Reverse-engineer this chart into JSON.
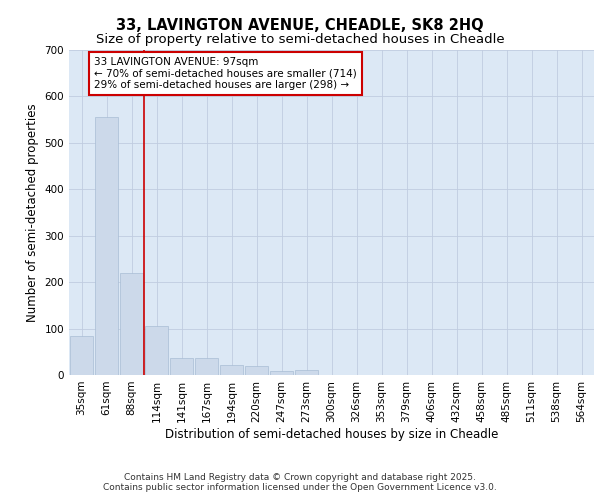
{
  "title_line1": "33, LAVINGTON AVENUE, CHEADLE, SK8 2HQ",
  "title_line2": "Size of property relative to semi-detached houses in Cheadle",
  "xlabel": "Distribution of semi-detached houses by size in Cheadle",
  "ylabel": "Number of semi-detached properties",
  "categories": [
    "35sqm",
    "61sqm",
    "88sqm",
    "114sqm",
    "141sqm",
    "167sqm",
    "194sqm",
    "220sqm",
    "247sqm",
    "273sqm",
    "300sqm",
    "326sqm",
    "353sqm",
    "379sqm",
    "406sqm",
    "432sqm",
    "458sqm",
    "485sqm",
    "511sqm",
    "538sqm",
    "564sqm"
  ],
  "values": [
    85,
    555,
    220,
    105,
    37,
    37,
    22,
    20,
    8,
    10,
    0,
    0,
    0,
    0,
    0,
    0,
    0,
    0,
    0,
    0,
    0
  ],
  "bar_color": "#ccd9ea",
  "bar_edge_color": "#a8bdd4",
  "vertical_line_x": 2.5,
  "vertical_line_color": "#cc0000",
  "annotation_text": "33 LAVINGTON AVENUE: 97sqm\n← 70% of semi-detached houses are smaller (714)\n29% of semi-detached houses are larger (298) →",
  "annotation_box_facecolor": "#ffffff",
  "annotation_box_edgecolor": "#cc0000",
  "ylim": [
    0,
    700
  ],
  "yticks": [
    0,
    100,
    200,
    300,
    400,
    500,
    600,
    700
  ],
  "grid_color": "#c0cce0",
  "background_color": "#dce8f5",
  "footer_line1": "Contains HM Land Registry data © Crown copyright and database right 2025.",
  "footer_line2": "Contains public sector information licensed under the Open Government Licence v3.0.",
  "title_fontsize": 10.5,
  "subtitle_fontsize": 9.5,
  "axis_label_fontsize": 8.5,
  "tick_fontsize": 7.5,
  "annotation_fontsize": 7.5,
  "footer_fontsize": 6.5
}
